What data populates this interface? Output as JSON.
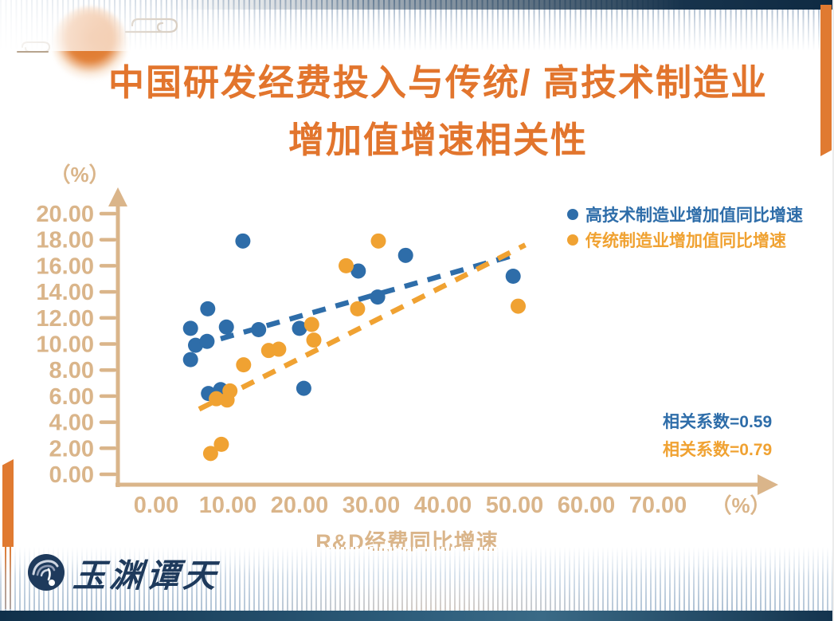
{
  "header": {
    "title_line1": "中国研发经费投入与传统/ 高技术制造业",
    "title_line2": "增加值增速相关性"
  },
  "chart_data": {
    "type": "scatter",
    "title": "中国研发经费投入与传统/高技术制造业增加值增速相关性",
    "xlabel": "R&D经费同比增速",
    "ylabel": "",
    "x_axis_unit": "（%）",
    "y_axis_unit": "（%）",
    "xlim": [
      0,
      70
    ],
    "ylim": [
      0,
      20
    ],
    "grid": false,
    "legend_position": "top-right",
    "x_tick_labels": [
      "0.00",
      "10.00",
      "20.00",
      "30.00",
      "40.00",
      "50.00",
      "60.00",
      "70.00"
    ],
    "y_tick_labels": [
      "0.00",
      "2.00",
      "4.00",
      "6.00",
      "8.00",
      "10.00",
      "12.00",
      "14.00",
      "16.00",
      "18.00",
      "20.00"
    ],
    "series": [
      {
        "name": "高技术制造业增加值同比增速",
        "color": "#2E6DA9",
        "marker": "circle",
        "correlation_label": "相关系数=0.59",
        "points": [
          [
            4.8,
            11.2
          ],
          [
            5.5,
            9.9
          ],
          [
            4.8,
            8.8
          ],
          [
            7.2,
            12.7
          ],
          [
            7.1,
            10.2
          ],
          [
            7.3,
            6.2
          ],
          [
            9.0,
            6.5
          ],
          [
            9.8,
            11.3
          ],
          [
            12.1,
            17.9
          ],
          [
            14.3,
            11.1
          ],
          [
            20.0,
            11.2
          ],
          [
            20.6,
            6.6
          ],
          [
            28.2,
            15.6
          ],
          [
            30.9,
            13.6
          ],
          [
            34.8,
            16.8
          ],
          [
            49.8,
            15.2
          ]
        ],
        "trendline": {
          "style": "dashed",
          "start": [
            9.0,
            10.4
          ],
          "end": [
            50.5,
            16.9
          ]
        }
      },
      {
        "name": "传统制造业增加值同比增速",
        "color": "#F0A232",
        "marker": "circle",
        "correlation_label": "相关系数=0.79",
        "points": [
          [
            7.6,
            1.6
          ],
          [
            9.1,
            2.3
          ],
          [
            8.4,
            5.8
          ],
          [
            9.9,
            5.7
          ],
          [
            10.3,
            6.4
          ],
          [
            12.2,
            8.4
          ],
          [
            15.7,
            9.5
          ],
          [
            17.1,
            9.6
          ],
          [
            21.7,
            11.5
          ],
          [
            22.0,
            10.3
          ],
          [
            26.5,
            16.0
          ],
          [
            28.1,
            12.7
          ],
          [
            31.0,
            17.9
          ],
          [
            50.5,
            12.9
          ]
        ],
        "trendline": {
          "style": "dashed",
          "start": [
            6.0,
            5.0
          ],
          "end": [
            51.5,
            17.6
          ]
        }
      }
    ]
  },
  "branding": {
    "logo_text": "玉渊谭天"
  },
  "colors": {
    "title": "#E2752D",
    "axis": "#DAB58A",
    "hightech_blue": "#2E6DA9",
    "traditional_orange": "#F0A232",
    "navy": "#1C3850",
    "accent_orange": "#E07A31"
  }
}
